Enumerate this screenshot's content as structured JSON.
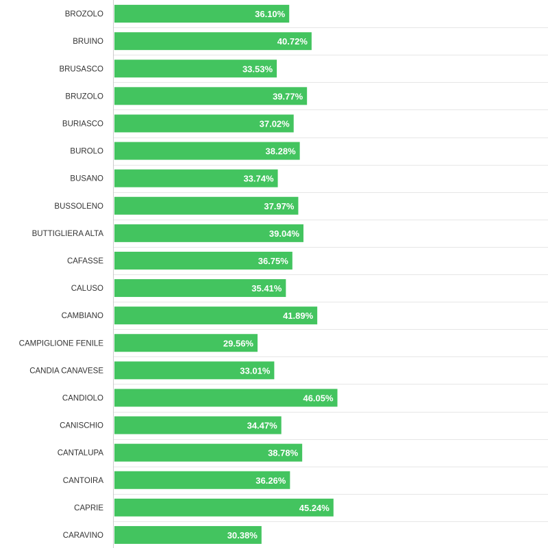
{
  "chart_data": {
    "type": "bar",
    "orientation": "horizontal",
    "title": "",
    "xlabel": "",
    "ylabel": "",
    "value_suffix": "%",
    "xlim": [
      0,
      100
    ],
    "bar_color": "#43c45f",
    "categories": [
      "BROZOLO",
      "BRUINO",
      "BRUSASCO",
      "BRUZOLO",
      "BURIASCO",
      "BUROLO",
      "BUSANO",
      "BUSSOLENO",
      "BUTTIGLIERA ALTA",
      "CAFASSE",
      "CALUSO",
      "CAMBIANO",
      "CAMPIGLIONE FENILE",
      "CANDIA CANAVESE",
      "CANDIOLO",
      "CANISCHIO",
      "CANTALUPA",
      "CANTOIRA",
      "CAPRIE",
      "CARAVINO"
    ],
    "values": [
      36.1,
      40.72,
      33.53,
      39.77,
      37.02,
      38.28,
      33.74,
      37.97,
      39.04,
      36.75,
      35.41,
      41.89,
      29.56,
      33.01,
      46.05,
      34.47,
      38.78,
      36.26,
      45.24,
      30.38
    ],
    "value_labels": [
      "36.10%",
      "40.72%",
      "33.53%",
      "39.77%",
      "37.02%",
      "38.28%",
      "33.74%",
      "37.97%",
      "39.04%",
      "36.75%",
      "35.41%",
      "41.89%",
      "29.56%",
      "33.01%",
      "46.05%",
      "34.47%",
      "38.78%",
      "36.26%",
      "45.24%",
      "30.38%"
    ]
  }
}
